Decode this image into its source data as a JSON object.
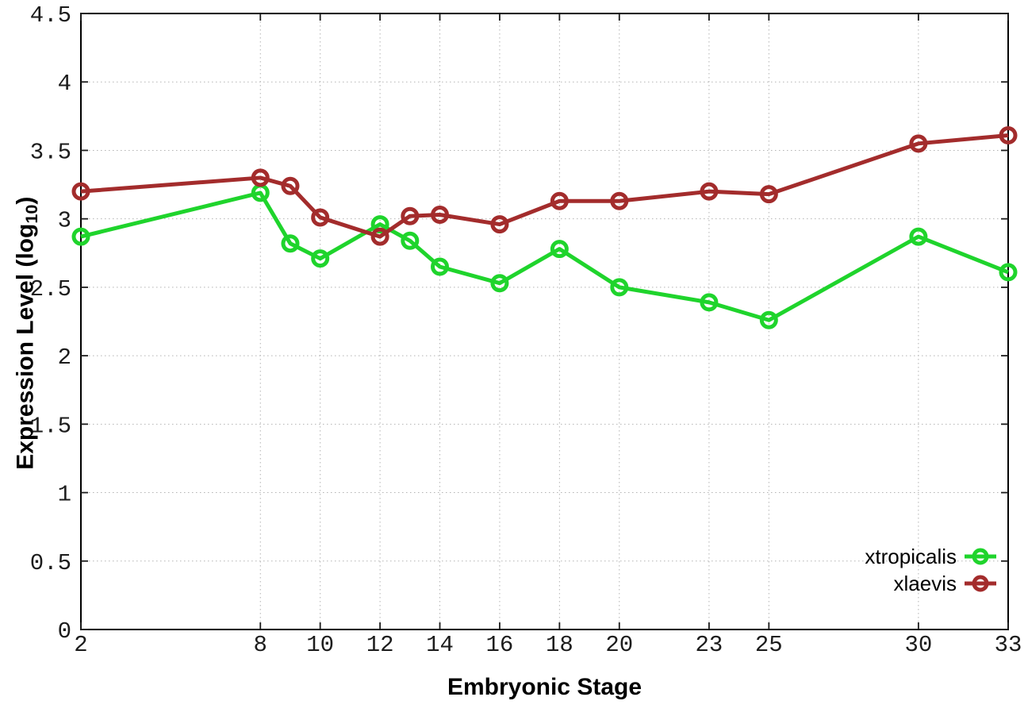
{
  "chart_data": {
    "type": "line",
    "title": "",
    "xlabel": "Embryonic Stage",
    "ylabel": {
      "text": "Expression Level (log10)",
      "prefix": "Expression Level (log",
      "sub": "10",
      "suffix": ")"
    },
    "x": [
      2,
      8,
      9,
      10,
      12,
      13,
      14,
      16,
      18,
      20,
      23,
      25,
      30,
      33
    ],
    "series": [
      {
        "name": "xtropicalis",
        "color": "#1fd42c",
        "marker": "open-circle",
        "values": [
          2.87,
          3.19,
          2.82,
          2.71,
          2.96,
          2.84,
          2.65,
          2.53,
          2.78,
          2.5,
          2.39,
          2.26,
          2.87,
          2.61
        ]
      },
      {
        "name": "xlaevis",
        "color": "#a32c2c",
        "marker": "open-circle",
        "values": [
          3.2,
          3.3,
          3.24,
          3.01,
          2.87,
          3.02,
          3.03,
          2.96,
          3.13,
          3.13,
          3.2,
          3.18,
          3.55,
          3.61
        ]
      }
    ],
    "xlim": [
      2,
      33
    ],
    "ylim": [
      0,
      4.5
    ],
    "xticks": [
      2,
      8,
      10,
      12,
      14,
      16,
      18,
      20,
      23,
      25,
      30,
      33
    ],
    "yticks": [
      0,
      0.5,
      1,
      1.5,
      2,
      2.5,
      3,
      3.5,
      4,
      4.5
    ],
    "grid": true,
    "legend_position": "inside-bottom-right"
  },
  "colors": {
    "background": "#ffffff",
    "border": "#000000",
    "grid": "#b3b3b3",
    "tick": "#1c1c1c",
    "tick_label": "#1c1c1c"
  }
}
